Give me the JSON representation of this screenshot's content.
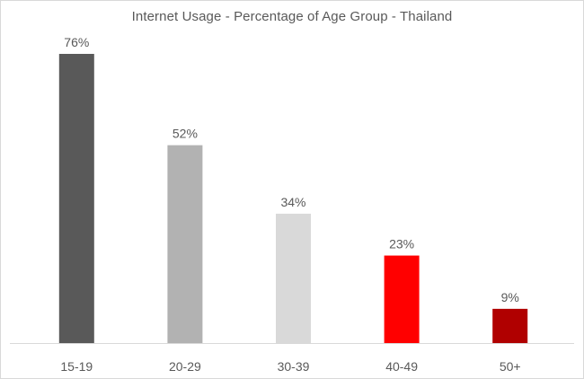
{
  "chart_data": {
    "type": "bar",
    "title": "Internet Usage - Percentage of Age Group - Thailand",
    "categories": [
      "15-19",
      "20-29",
      "30-39",
      "40-49",
      "50+"
    ],
    "values": [
      76,
      52,
      34,
      23,
      9
    ],
    "data_labels": [
      "76%",
      "52%",
      "34%",
      "23%",
      "9%"
    ],
    "bar_colors": [
      "#595959",
      "#b2b2b2",
      "#d9d9d9",
      "#ff0000",
      "#b00000"
    ],
    "xlabel": "",
    "ylabel": "",
    "ylim": [
      0,
      76
    ],
    "grid": false,
    "legend": "none"
  }
}
